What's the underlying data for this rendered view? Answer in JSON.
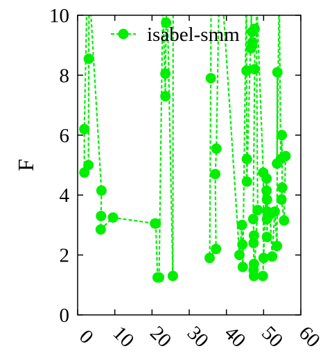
{
  "chart_data": {
    "type": "line",
    "title": "",
    "xlabel": "",
    "ylabel": "F",
    "xlim": [
      0,
      60
    ],
    "ylim": [
      0,
      10
    ],
    "xticks": [
      "0",
      "10",
      "20",
      "30",
      "40",
      "50",
      "60"
    ],
    "yticks": [
      "0",
      "2",
      "4",
      "6",
      "8",
      "10"
    ],
    "grid": false,
    "legend_position": "top-right",
    "line_style": "dashed",
    "marker": "circle",
    "series": [
      {
        "name": "isabel-smm",
        "color": "#00ee00",
        "points": [
          [
            2.5,
            10.5
          ],
          [
            1.8,
            6.2
          ],
          [
            1.8,
            4.75
          ],
          [
            2.9,
            5.0
          ],
          [
            3.0,
            8.55
          ],
          [
            3.1,
            11.0
          ],
          [
            6.4,
            4.15
          ],
          [
            6.3,
            3.3
          ],
          [
            6.2,
            2.85
          ],
          [
            9.5,
            3.25
          ],
          [
            20.8,
            3.05
          ],
          [
            21.0,
            3.05
          ],
          [
            21.5,
            1.25
          ],
          [
            21.9,
            1.25
          ],
          [
            22.9,
            10.5
          ],
          [
            23.6,
            7.3
          ],
          [
            23.6,
            8.05
          ],
          [
            23.8,
            9.75
          ],
          [
            24.0,
            11.0
          ],
          [
            25.6,
            1.3
          ],
          [
            25.7,
            12.0
          ],
          [
            35.9,
            11.0
          ],
          [
            35.8,
            7.9
          ],
          [
            35.5,
            1.9
          ],
          [
            37.2,
            2.2
          ],
          [
            37.0,
            4.7
          ],
          [
            37.3,
            5.55
          ],
          [
            38.2,
            12.0
          ],
          [
            43.5,
            2.0
          ],
          [
            44.2,
            3.0
          ],
          [
            44.3,
            2.35
          ],
          [
            44.4,
            1.6
          ],
          [
            45.4,
            11.0
          ],
          [
            45.4,
            8.15
          ],
          [
            45.5,
            5.2
          ],
          [
            45.5,
            4.45
          ],
          [
            46.8,
            10.5
          ],
          [
            46.6,
            8.9
          ],
          [
            47.0,
            9.1
          ],
          [
            46.9,
            9.45
          ],
          [
            47.6,
            9.55
          ],
          [
            47.6,
            8.2
          ],
          [
            47.2,
            3.2
          ],
          [
            47.4,
            2.65
          ],
          [
            47.3,
            2.4
          ],
          [
            47.4,
            1.7
          ],
          [
            47.3,
            1.5
          ],
          [
            47.4,
            1.3
          ],
          [
            48.4,
            3.5
          ],
          [
            48.0,
            11.0
          ],
          [
            49.9,
            4.75
          ],
          [
            50.0,
            1.9
          ],
          [
            49.8,
            1.3
          ],
          [
            50.8,
            4.55
          ],
          [
            50.8,
            4.15
          ],
          [
            50.9,
            3.85
          ],
          [
            51.0,
            3.45
          ],
          [
            50.9,
            3.2
          ],
          [
            50.9,
            2.6
          ],
          [
            51.1,
            3.35
          ],
          [
            51.7,
            3.35
          ],
          [
            52.3,
            1.95
          ],
          [
            53.0,
            3.45
          ],
          [
            53.6,
            2.3
          ],
          [
            53.7,
            8.1
          ],
          [
            53.6,
            5.05
          ],
          [
            54.2,
            10.8
          ],
          [
            54.6,
            5.2
          ],
          [
            54.9,
            6.0
          ],
          [
            55.0,
            4.25
          ],
          [
            54.8,
            3.85
          ],
          [
            55.5,
            3.15
          ],
          [
            55.9,
            5.3
          ]
        ]
      }
    ]
  }
}
